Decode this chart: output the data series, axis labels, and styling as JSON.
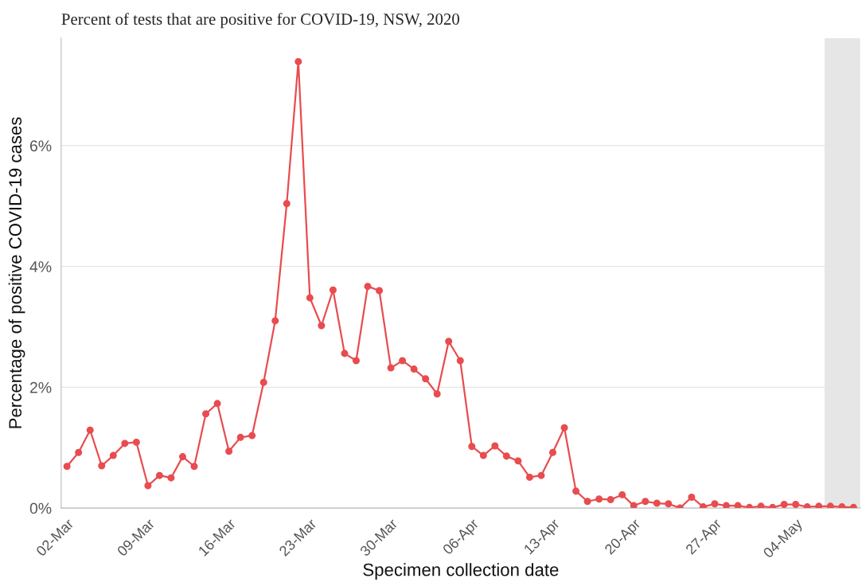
{
  "chart_data": {
    "type": "line",
    "title": "Percent of tests that are positive for COVID-19, NSW, 2020",
    "xlabel": "Specimen collection date",
    "ylabel": "Percentage of positive COVID-19 cases",
    "x": [
      "2020-03-02",
      "2020-03-03",
      "2020-03-04",
      "2020-03-05",
      "2020-03-06",
      "2020-03-07",
      "2020-03-08",
      "2020-03-09",
      "2020-03-10",
      "2020-03-11",
      "2020-03-12",
      "2020-03-13",
      "2020-03-14",
      "2020-03-15",
      "2020-03-16",
      "2020-03-17",
      "2020-03-18",
      "2020-03-19",
      "2020-03-20",
      "2020-03-21",
      "2020-03-22",
      "2020-03-23",
      "2020-03-24",
      "2020-03-25",
      "2020-03-26",
      "2020-03-27",
      "2020-03-28",
      "2020-03-29",
      "2020-03-30",
      "2020-03-31",
      "2020-04-01",
      "2020-04-02",
      "2020-04-03",
      "2020-04-04",
      "2020-04-05",
      "2020-04-06",
      "2020-04-07",
      "2020-04-08",
      "2020-04-09",
      "2020-04-10",
      "2020-04-11",
      "2020-04-12",
      "2020-04-13",
      "2020-04-14",
      "2020-04-15",
      "2020-04-16",
      "2020-04-17",
      "2020-04-18",
      "2020-04-19",
      "2020-04-20",
      "2020-04-21",
      "2020-04-22",
      "2020-04-23",
      "2020-04-24",
      "2020-04-25",
      "2020-04-26",
      "2020-04-27",
      "2020-04-28",
      "2020-04-29",
      "2020-04-30",
      "2020-05-01",
      "2020-05-02",
      "2020-05-03",
      "2020-05-04",
      "2020-05-05",
      "2020-05-06",
      "2020-05-07",
      "2020-05-08",
      "2020-05-09"
    ],
    "series": [
      {
        "color": "#e84c4f",
        "values": [
          0.69,
          0.92,
          1.29,
          0.7,
          0.87,
          1.07,
          1.09,
          0.37,
          0.54,
          0.5,
          0.85,
          0.69,
          1.56,
          1.73,
          0.94,
          1.17,
          1.2,
          2.08,
          3.1,
          5.04,
          7.39,
          3.48,
          3.02,
          3.61,
          2.56,
          2.44,
          3.67,
          3.6,
          2.32,
          2.44,
          2.3,
          2.14,
          1.89,
          2.76,
          2.44,
          1.02,
          0.87,
          1.03,
          0.86,
          0.78,
          0.51,
          0.54,
          0.92,
          1.33,
          0.28,
          0.11,
          0.15,
          0.14,
          0.22,
          0.04,
          0.11,
          0.08,
          0.07,
          0.0,
          0.18,
          0.02,
          0.07,
          0.04,
          0.04,
          0.01,
          0.03,
          0.01,
          0.06,
          0.06,
          0.02,
          0.03,
          0.03,
          0.02,
          0.01
        ]
      }
    ],
    "xlim": [
      "2020-03-01T12:00",
      "2020-05-09T14:00"
    ],
    "xticks": [
      {
        "value": "2020-03-02",
        "label": "02-Mar"
      },
      {
        "value": "2020-03-09",
        "label": "09-Mar"
      },
      {
        "value": "2020-03-16",
        "label": "16-Mar"
      },
      {
        "value": "2020-03-23",
        "label": "23-Mar"
      },
      {
        "value": "2020-03-30",
        "label": "30-Mar"
      },
      {
        "value": "2020-04-06",
        "label": "06-Apr"
      },
      {
        "value": "2020-04-13",
        "label": "13-Apr"
      },
      {
        "value": "2020-04-20",
        "label": "20-Apr"
      },
      {
        "value": "2020-04-27",
        "label": "27-Apr"
      },
      {
        "value": "2020-05-04",
        "label": "04-May"
      }
    ],
    "ylim": [
      0,
      7.78
    ],
    "yticks": [
      {
        "value": 0,
        "label": "0%"
      },
      {
        "value": 2,
        "label": "2%"
      },
      {
        "value": 4,
        "label": "4%"
      },
      {
        "value": 6,
        "label": "6%"
      }
    ],
    "bands": [
      {
        "axis": "x",
        "from": "2020-05-06T12:00",
        "to": "2020-05-09T14:00",
        "color": "#e6e6e6"
      }
    ],
    "grid": "y",
    "marker": "circle",
    "line_style": "solid"
  }
}
